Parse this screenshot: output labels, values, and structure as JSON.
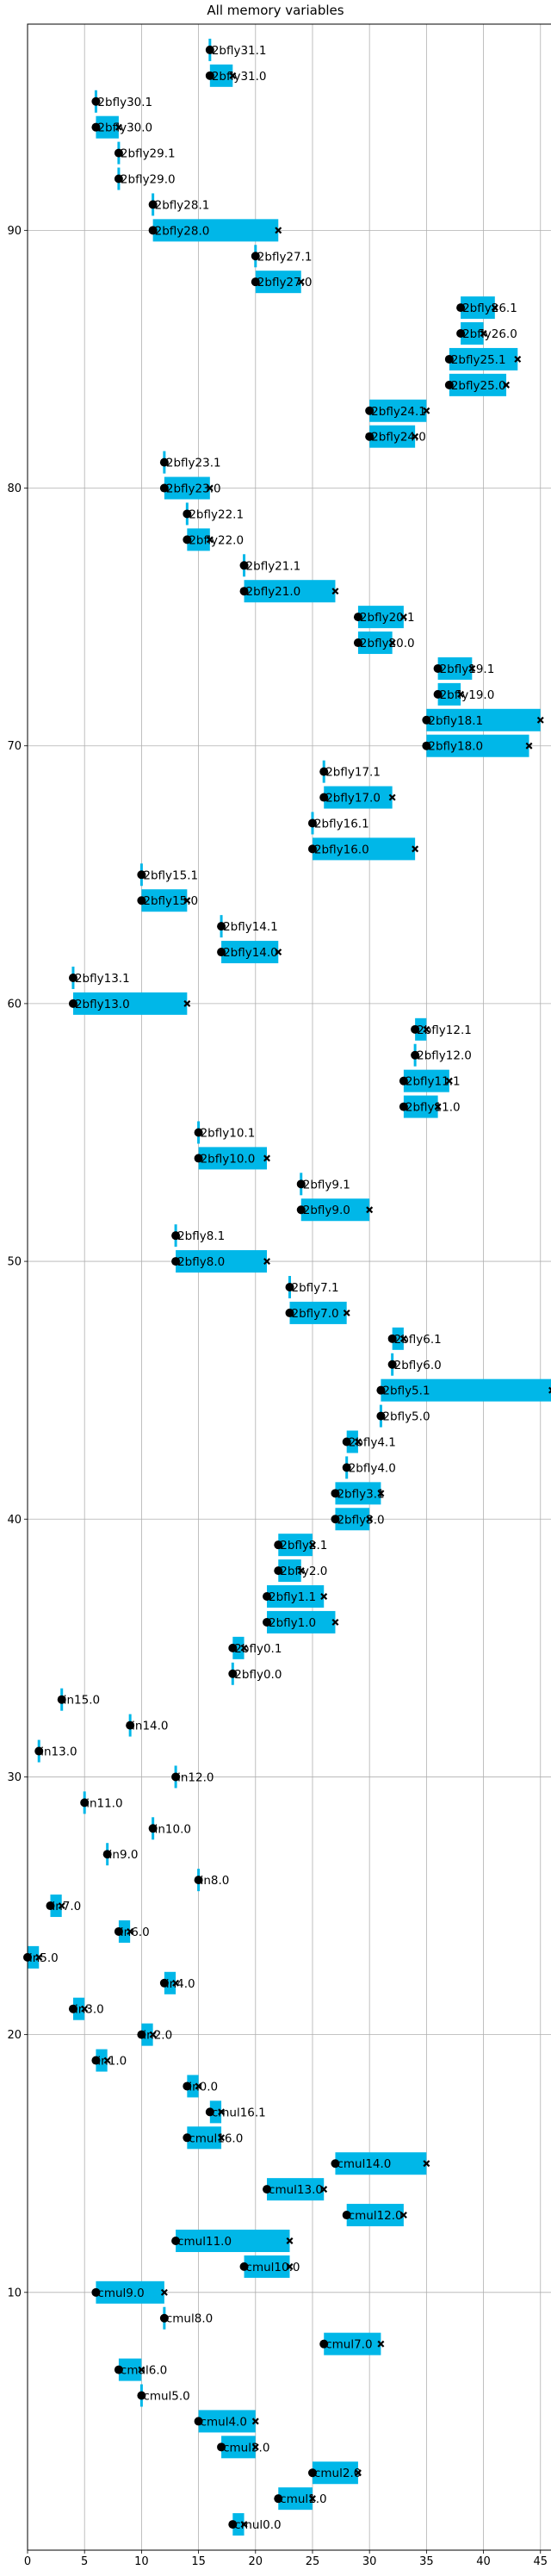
{
  "chart_data": {
    "type": "timeline",
    "title": "All memory variables",
    "xlim": [
      0,
      46
    ],
    "ylim": [
      0,
      98
    ],
    "x_ticks": [
      0,
      5,
      10,
      15,
      20,
      25,
      30,
      35,
      40,
      45
    ],
    "y_ticks": [
      10,
      20,
      30,
      40,
      50,
      60,
      70,
      80,
      90
    ],
    "grid": true,
    "bar_color": "#00b7e8",
    "bars": [
      {
        "label": "2bfly31.1",
        "y": 97,
        "start": 16,
        "end": 16
      },
      {
        "label": "2bfly31.0",
        "y": 96,
        "start": 16,
        "end": 18
      },
      {
        "label": "2bfly30.1",
        "y": 95,
        "start": 6,
        "end": 6
      },
      {
        "label": "2bfly30.0",
        "y": 94,
        "start": 6,
        "end": 8
      },
      {
        "label": "2bfly29.1",
        "y": 93,
        "start": 8,
        "end": 8
      },
      {
        "label": "2bfly29.0",
        "y": 92,
        "start": 8,
        "end": 8
      },
      {
        "label": "2bfly28.1",
        "y": 91,
        "start": 11,
        "end": 11
      },
      {
        "label": "2bfly28.0",
        "y": 90,
        "start": 11,
        "end": 22
      },
      {
        "label": "2bfly27.1",
        "y": 89,
        "start": 20,
        "end": 20
      },
      {
        "label": "2bfly27.0",
        "y": 88,
        "start": 20,
        "end": 24
      },
      {
        "label": "2bfly26.1",
        "y": 87,
        "start": 38,
        "end": 41
      },
      {
        "label": "2bfly26.0",
        "y": 86,
        "start": 38,
        "end": 40
      },
      {
        "label": "2bfly25.1",
        "y": 85,
        "start": 37,
        "end": 43
      },
      {
        "label": "2bfly25.0",
        "y": 84,
        "start": 37,
        "end": 42
      },
      {
        "label": "2bfly24.1",
        "y": 83,
        "start": 30,
        "end": 35
      },
      {
        "label": "2bfly24.0",
        "y": 82,
        "start": 30,
        "end": 34
      },
      {
        "label": "2bfly23.1",
        "y": 81,
        "start": 12,
        "end": 12
      },
      {
        "label": "2bfly23.0",
        "y": 80,
        "start": 12,
        "end": 16
      },
      {
        "label": "2bfly22.1",
        "y": 79,
        "start": 14,
        "end": 14
      },
      {
        "label": "2bfly22.0",
        "y": 78,
        "start": 14,
        "end": 16
      },
      {
        "label": "2bfly21.1",
        "y": 77,
        "start": 19,
        "end": 19
      },
      {
        "label": "2bfly21.0",
        "y": 76,
        "start": 19,
        "end": 27
      },
      {
        "label": "2bfly20.1",
        "y": 75,
        "start": 29,
        "end": 33
      },
      {
        "label": "2bfly20.0",
        "y": 74,
        "start": 29,
        "end": 32
      },
      {
        "label": "2bfly19.1",
        "y": 73,
        "start": 36,
        "end": 39
      },
      {
        "label": "2bfly19.0",
        "y": 72,
        "start": 36,
        "end": 38
      },
      {
        "label": "2bfly18.1",
        "y": 71,
        "start": 35,
        "end": 45
      },
      {
        "label": "2bfly18.0",
        "y": 70,
        "start": 35,
        "end": 44
      },
      {
        "label": "2bfly17.1",
        "y": 69,
        "start": 26,
        "end": 26
      },
      {
        "label": "2bfly17.0",
        "y": 68,
        "start": 26,
        "end": 32
      },
      {
        "label": "2bfly16.1",
        "y": 67,
        "start": 25,
        "end": 25
      },
      {
        "label": "2bfly16.0",
        "y": 66,
        "start": 25,
        "end": 34
      },
      {
        "label": "2bfly15.1",
        "y": 65,
        "start": 10,
        "end": 10
      },
      {
        "label": "2bfly15.0",
        "y": 64,
        "start": 10,
        "end": 14
      },
      {
        "label": "2bfly14.1",
        "y": 63,
        "start": 17,
        "end": 17
      },
      {
        "label": "2bfly14.0",
        "y": 62,
        "start": 17,
        "end": 22
      },
      {
        "label": "2bfly13.1",
        "y": 61,
        "start": 4,
        "end": 4
      },
      {
        "label": "2bfly13.0",
        "y": 60,
        "start": 4,
        "end": 14
      },
      {
        "label": "2bfly12.1",
        "y": 59,
        "start": 34,
        "end": 35
      },
      {
        "label": "2bfly12.0",
        "y": 58,
        "start": 34,
        "end": 34
      },
      {
        "label": "2bfly11.1",
        "y": 57,
        "start": 33,
        "end": 37
      },
      {
        "label": "2bfly11.0",
        "y": 56,
        "start": 33,
        "end": 36
      },
      {
        "label": "2bfly10.1",
        "y": 55,
        "start": 15,
        "end": 15
      },
      {
        "label": "2bfly10.0",
        "y": 54,
        "start": 15,
        "end": 21
      },
      {
        "label": "2bfly9.1",
        "y": 53,
        "start": 24,
        "end": 24
      },
      {
        "label": "2bfly9.0",
        "y": 52,
        "start": 24,
        "end": 30
      },
      {
        "label": "2bfly8.1",
        "y": 51,
        "start": 13,
        "end": 13
      },
      {
        "label": "2bfly8.0",
        "y": 50,
        "start": 13,
        "end": 21
      },
      {
        "label": "2bfly7.1",
        "y": 49,
        "start": 23,
        "end": 23
      },
      {
        "label": "2bfly7.0",
        "y": 48,
        "start": 23,
        "end": 28
      },
      {
        "label": "2bfly6.1",
        "y": 47,
        "start": 32,
        "end": 33
      },
      {
        "label": "2bfly6.0",
        "y": 46,
        "start": 32,
        "end": 32
      },
      {
        "label": "2bfly5.1",
        "y": 45,
        "start": 31,
        "end": 46
      },
      {
        "label": "2bfly5.0",
        "y": 44,
        "start": 31,
        "end": 31
      },
      {
        "label": "2bfly4.1",
        "y": 43,
        "start": 28,
        "end": 29
      },
      {
        "label": "2bfly4.0",
        "y": 42,
        "start": 28,
        "end": 28
      },
      {
        "label": "2bfly3.1",
        "y": 41,
        "start": 27,
        "end": 31
      },
      {
        "label": "2bfly3.0",
        "y": 40,
        "start": 27,
        "end": 30
      },
      {
        "label": "2bfly2.1",
        "y": 39,
        "start": 22,
        "end": 25
      },
      {
        "label": "2bfly2.0",
        "y": 38,
        "start": 22,
        "end": 24
      },
      {
        "label": "2bfly1.1",
        "y": 37,
        "start": 21,
        "end": 26
      },
      {
        "label": "2bfly1.0",
        "y": 36,
        "start": 21,
        "end": 27
      },
      {
        "label": "2bfly0.1",
        "y": 35,
        "start": 18,
        "end": 19
      },
      {
        "label": "2bfly0.0",
        "y": 34,
        "start": 18,
        "end": 18
      },
      {
        "label": "in15.0",
        "y": 33,
        "start": 3,
        "end": 3
      },
      {
        "label": "in14.0",
        "y": 32,
        "start": 9,
        "end": 9
      },
      {
        "label": "in13.0",
        "y": 31,
        "start": 1,
        "end": 1
      },
      {
        "label": "in12.0",
        "y": 30,
        "start": 13,
        "end": 13
      },
      {
        "label": "in11.0",
        "y": 29,
        "start": 5,
        "end": 5
      },
      {
        "label": "in10.0",
        "y": 28,
        "start": 11,
        "end": 11
      },
      {
        "label": "in9.0",
        "y": 27,
        "start": 7,
        "end": 7
      },
      {
        "label": "in8.0",
        "y": 26,
        "start": 15,
        "end": 15
      },
      {
        "label": "in7.0",
        "y": 25,
        "start": 2,
        "end": 3
      },
      {
        "label": "in6.0",
        "y": 24,
        "start": 8,
        "end": 9
      },
      {
        "label": "in5.0",
        "y": 23,
        "start": 0,
        "end": 1
      },
      {
        "label": "in4.0",
        "y": 22,
        "start": 12,
        "end": 13
      },
      {
        "label": "in3.0",
        "y": 21,
        "start": 4,
        "end": 5
      },
      {
        "label": "in2.0",
        "y": 20,
        "start": 10,
        "end": 11
      },
      {
        "label": "in1.0",
        "y": 19,
        "start": 6,
        "end": 7
      },
      {
        "label": "in0.0",
        "y": 18,
        "start": 14,
        "end": 15
      },
      {
        "label": "cmul16.1",
        "y": 17,
        "start": 16,
        "end": 17
      },
      {
        "label": "cmul16.0",
        "y": 16,
        "start": 14,
        "end": 17
      },
      {
        "label": "cmul14.0",
        "y": 15,
        "start": 27,
        "end": 35
      },
      {
        "label": "cmul13.0",
        "y": 14,
        "start": 21,
        "end": 26
      },
      {
        "label": "cmul12.0",
        "y": 13,
        "start": 28,
        "end": 33
      },
      {
        "label": "cmul11.0",
        "y": 12,
        "start": 13,
        "end": 23
      },
      {
        "label": "cmul10.0",
        "y": 11,
        "start": 19,
        "end": 23
      },
      {
        "label": "cmul9.0",
        "y": 10,
        "start": 6,
        "end": 12
      },
      {
        "label": "cmul8.0",
        "y": 9,
        "start": 12,
        "end": 12
      },
      {
        "label": "cmul7.0",
        "y": 8,
        "start": 26,
        "end": 31
      },
      {
        "label": "cmul6.0",
        "y": 7,
        "start": 8,
        "end": 10
      },
      {
        "label": "cmul5.0",
        "y": 6,
        "start": 10,
        "end": 10
      },
      {
        "label": "cmul4.0",
        "y": 5,
        "start": 15,
        "end": 20
      },
      {
        "label": "cmul3.0",
        "y": 4,
        "start": 17,
        "end": 20
      },
      {
        "label": "cmul2.0",
        "y": 3,
        "start": 25,
        "end": 29
      },
      {
        "label": "cmul1.0",
        "y": 2,
        "start": 22,
        "end": 25
      },
      {
        "label": "cmul0.0",
        "y": 1,
        "start": 18,
        "end": 19
      }
    ]
  }
}
